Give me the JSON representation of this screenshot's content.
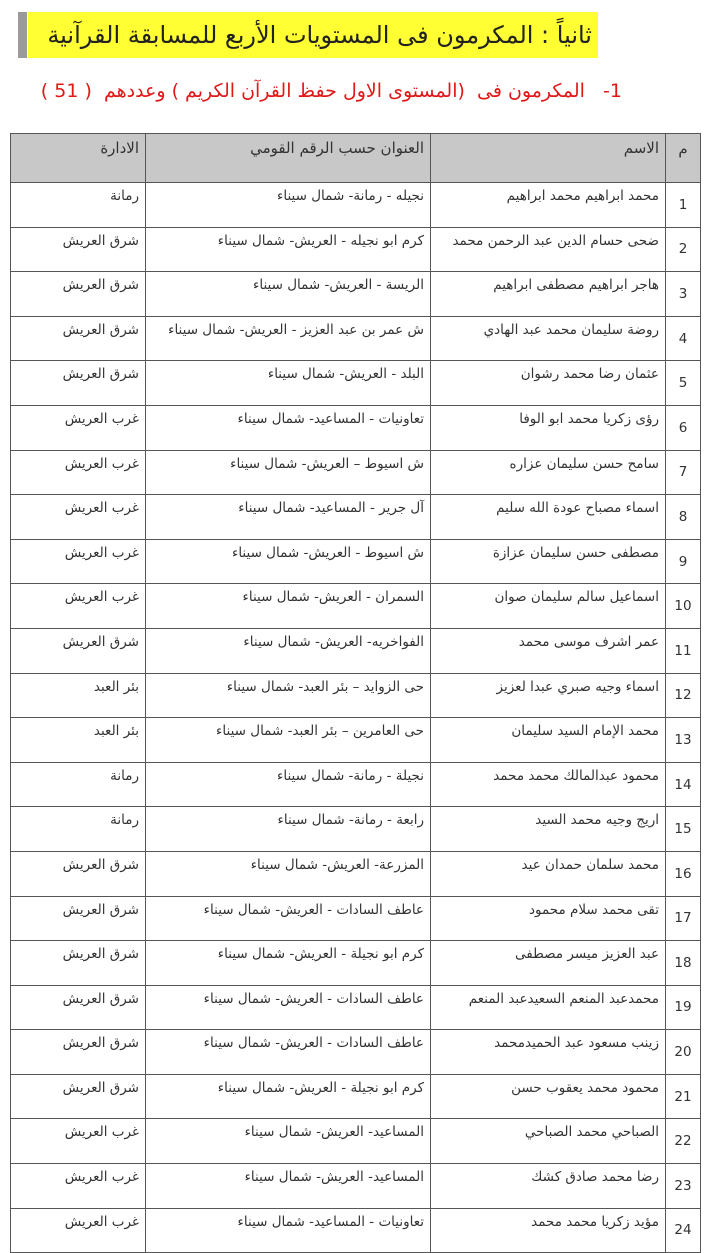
{
  "header": {
    "title": "ثانياً : المكرمون فى المستويات الأربع للمسابقة القرآنية",
    "subtitle": "1-   المكرمون فى  (المستوى الاول حفظ القرآن الكريم ) وعددهم  ( 51 )"
  },
  "table": {
    "columns": [
      "م",
      "الاسم",
      "العنوان حسب الرقم القومي",
      "الادارة"
    ],
    "rows": [
      [
        1,
        "محمد ابراهيم محمد ابراهيم",
        "نجيله - رمانة- شمال سيناء",
        "رمانة"
      ],
      [
        2,
        "ضحى حسام الدين عبد الرحمن محمد",
        "كرم ابو نجيله - العريش- شمال سيناء",
        "شرق العريش"
      ],
      [
        3,
        "هاجر ابراهيم مصطفى ابراهيم",
        "الريسة - العريش- شمال سيناء",
        "شرق العريش"
      ],
      [
        4,
        "روضة سليمان محمد عبد الهادي",
        "ش عمر بن عبد العزيز - العريش- شمال سيناء",
        "شرق العريش"
      ],
      [
        5,
        "عثمان رضا محمد رشوان",
        "البلد - العريش- شمال سيناء",
        "شرق العريش"
      ],
      [
        6,
        "رؤى زكريا محمد ابو الوفا",
        "تعاونيات - المساعيد- شمال سيناء",
        "غرب العريش"
      ],
      [
        7,
        "سامح حسن سليمان عزاره",
        "ش اسيوط – العريش- شمال سيناء",
        "غرب العريش"
      ],
      [
        8,
        "اسماء مصباح عودة الله سليم",
        "آل جرير - المساعيد- شمال سيناء",
        "غرب العريش"
      ],
      [
        9,
        "مصطفى حسن سليمان عزازة",
        "ش اسيوط - العريش- شمال سيناء",
        "غرب العريش"
      ],
      [
        10,
        "اسماعيل سالم سليمان صوان",
        "السمران - العريش- شمال سيناء",
        "غرب العريش"
      ],
      [
        11,
        "عمر اشرف موسى محمد",
        "الفواخريه- العريش- شمال سيناء",
        "شرق العريش"
      ],
      [
        12,
        "اسماء وجيه صبري عبدا لعزيز",
        "حى الزوايد – بئر العبد- شمال سيناء",
        "بئر العبد"
      ],
      [
        13,
        "محمد الإمام السيد سليمان",
        "حى العامرين – بئر العبد- شمال سيناء",
        "بئر العبد"
      ],
      [
        14,
        "محمود عبدالمالك محمد محمد",
        "نجيلة - رمانة- شمال سيناء",
        "رمانة"
      ],
      [
        15,
        "اريج وجيه محمد السيد",
        "رابعة - رمانة- شمال سيناء",
        "رمانة"
      ],
      [
        16,
        "محمد سلمان حمدان عيد",
        "المزرعة- العريش- شمال سيناء",
        "شرق العريش"
      ],
      [
        17,
        "تقى محمد سلام محمود",
        "عاطف السادات - العريش- شمال سيناء",
        "شرق العريش"
      ],
      [
        18,
        "عبد العزيز ميسر مصطفى",
        "كرم ابو نجيلة - العريش- شمال سيناء",
        "شرق العريش"
      ],
      [
        19,
        "محمدعبد المنعم السعيدعبد المنعم",
        "عاطف السادات - العريش- شمال سيناء",
        "شرق العريش"
      ],
      [
        20,
        "زينب مسعود عبد الحميدمحمد",
        "عاطف السادات - العريش- شمال سيناء",
        "شرق العريش"
      ],
      [
        21,
        "محمود محمد يعقوب حسن",
        "كرم ابو نجيلة - العريش- شمال سيناء",
        "شرق العريش"
      ],
      [
        22,
        "الصباحي محمد الصباحي",
        "المساعيد- العريش- شمال سيناء",
        "غرب العريش"
      ],
      [
        23,
        "رضا محمد صادق كشك",
        "المساعيد- العريش- شمال سيناء",
        "غرب العريش"
      ],
      [
        24,
        "مؤيد زكريا محمد محمد",
        "تعاونيات - المساعيد- شمال سيناء",
        "غرب العريش"
      ]
    ]
  }
}
